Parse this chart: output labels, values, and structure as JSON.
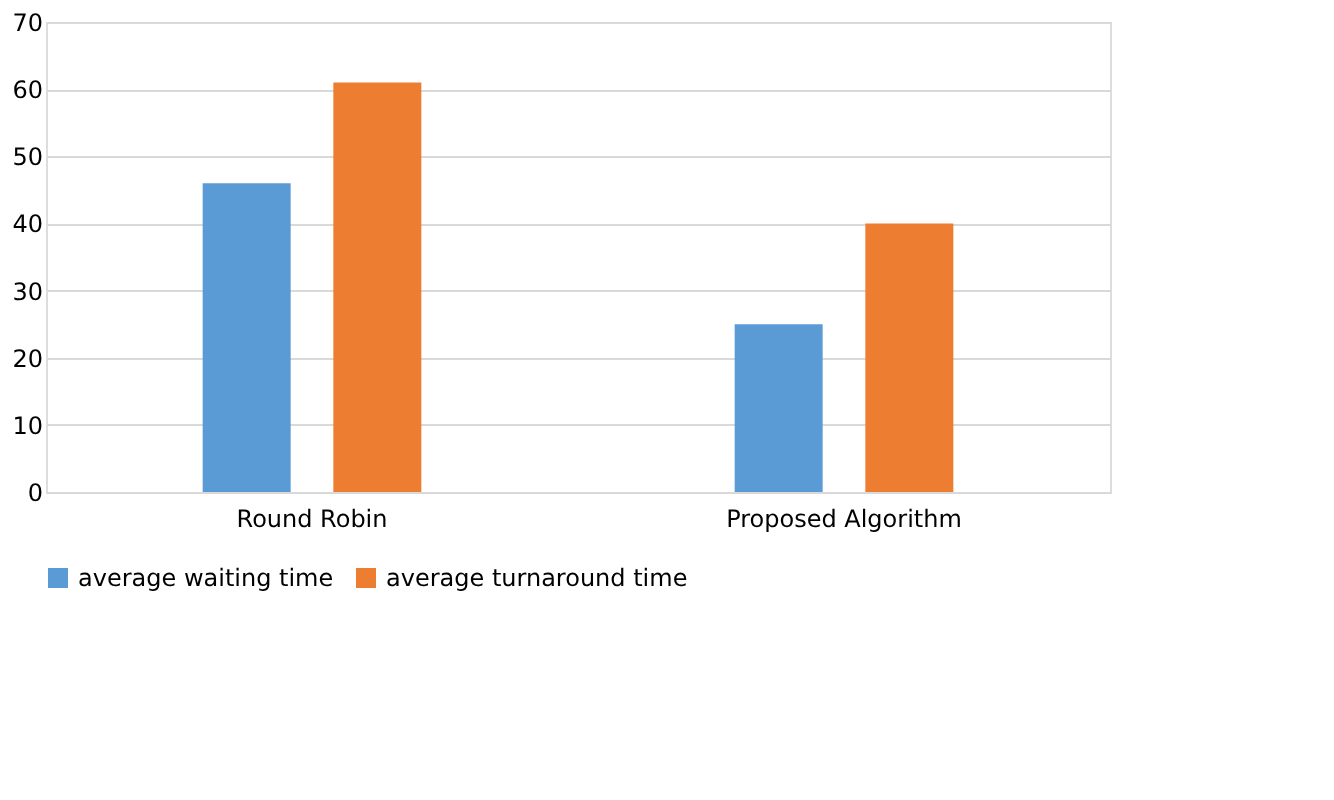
{
  "chart_data": {
    "type": "bar",
    "categories": [
      "Round Robin",
      "Proposed Algorithm"
    ],
    "series": [
      {
        "name": "average waiting time",
        "color": "#5b9bd5",
        "values": [
          46,
          25
        ]
      },
      {
        "name": "average turnaround time",
        "color": "#ed7d31",
        "values": [
          61,
          40
        ]
      }
    ],
    "ylim": [
      0,
      70
    ],
    "yticks": [
      0,
      10,
      20,
      30,
      40,
      50,
      60,
      70
    ],
    "grid": "y",
    "legend": "bottom"
  }
}
